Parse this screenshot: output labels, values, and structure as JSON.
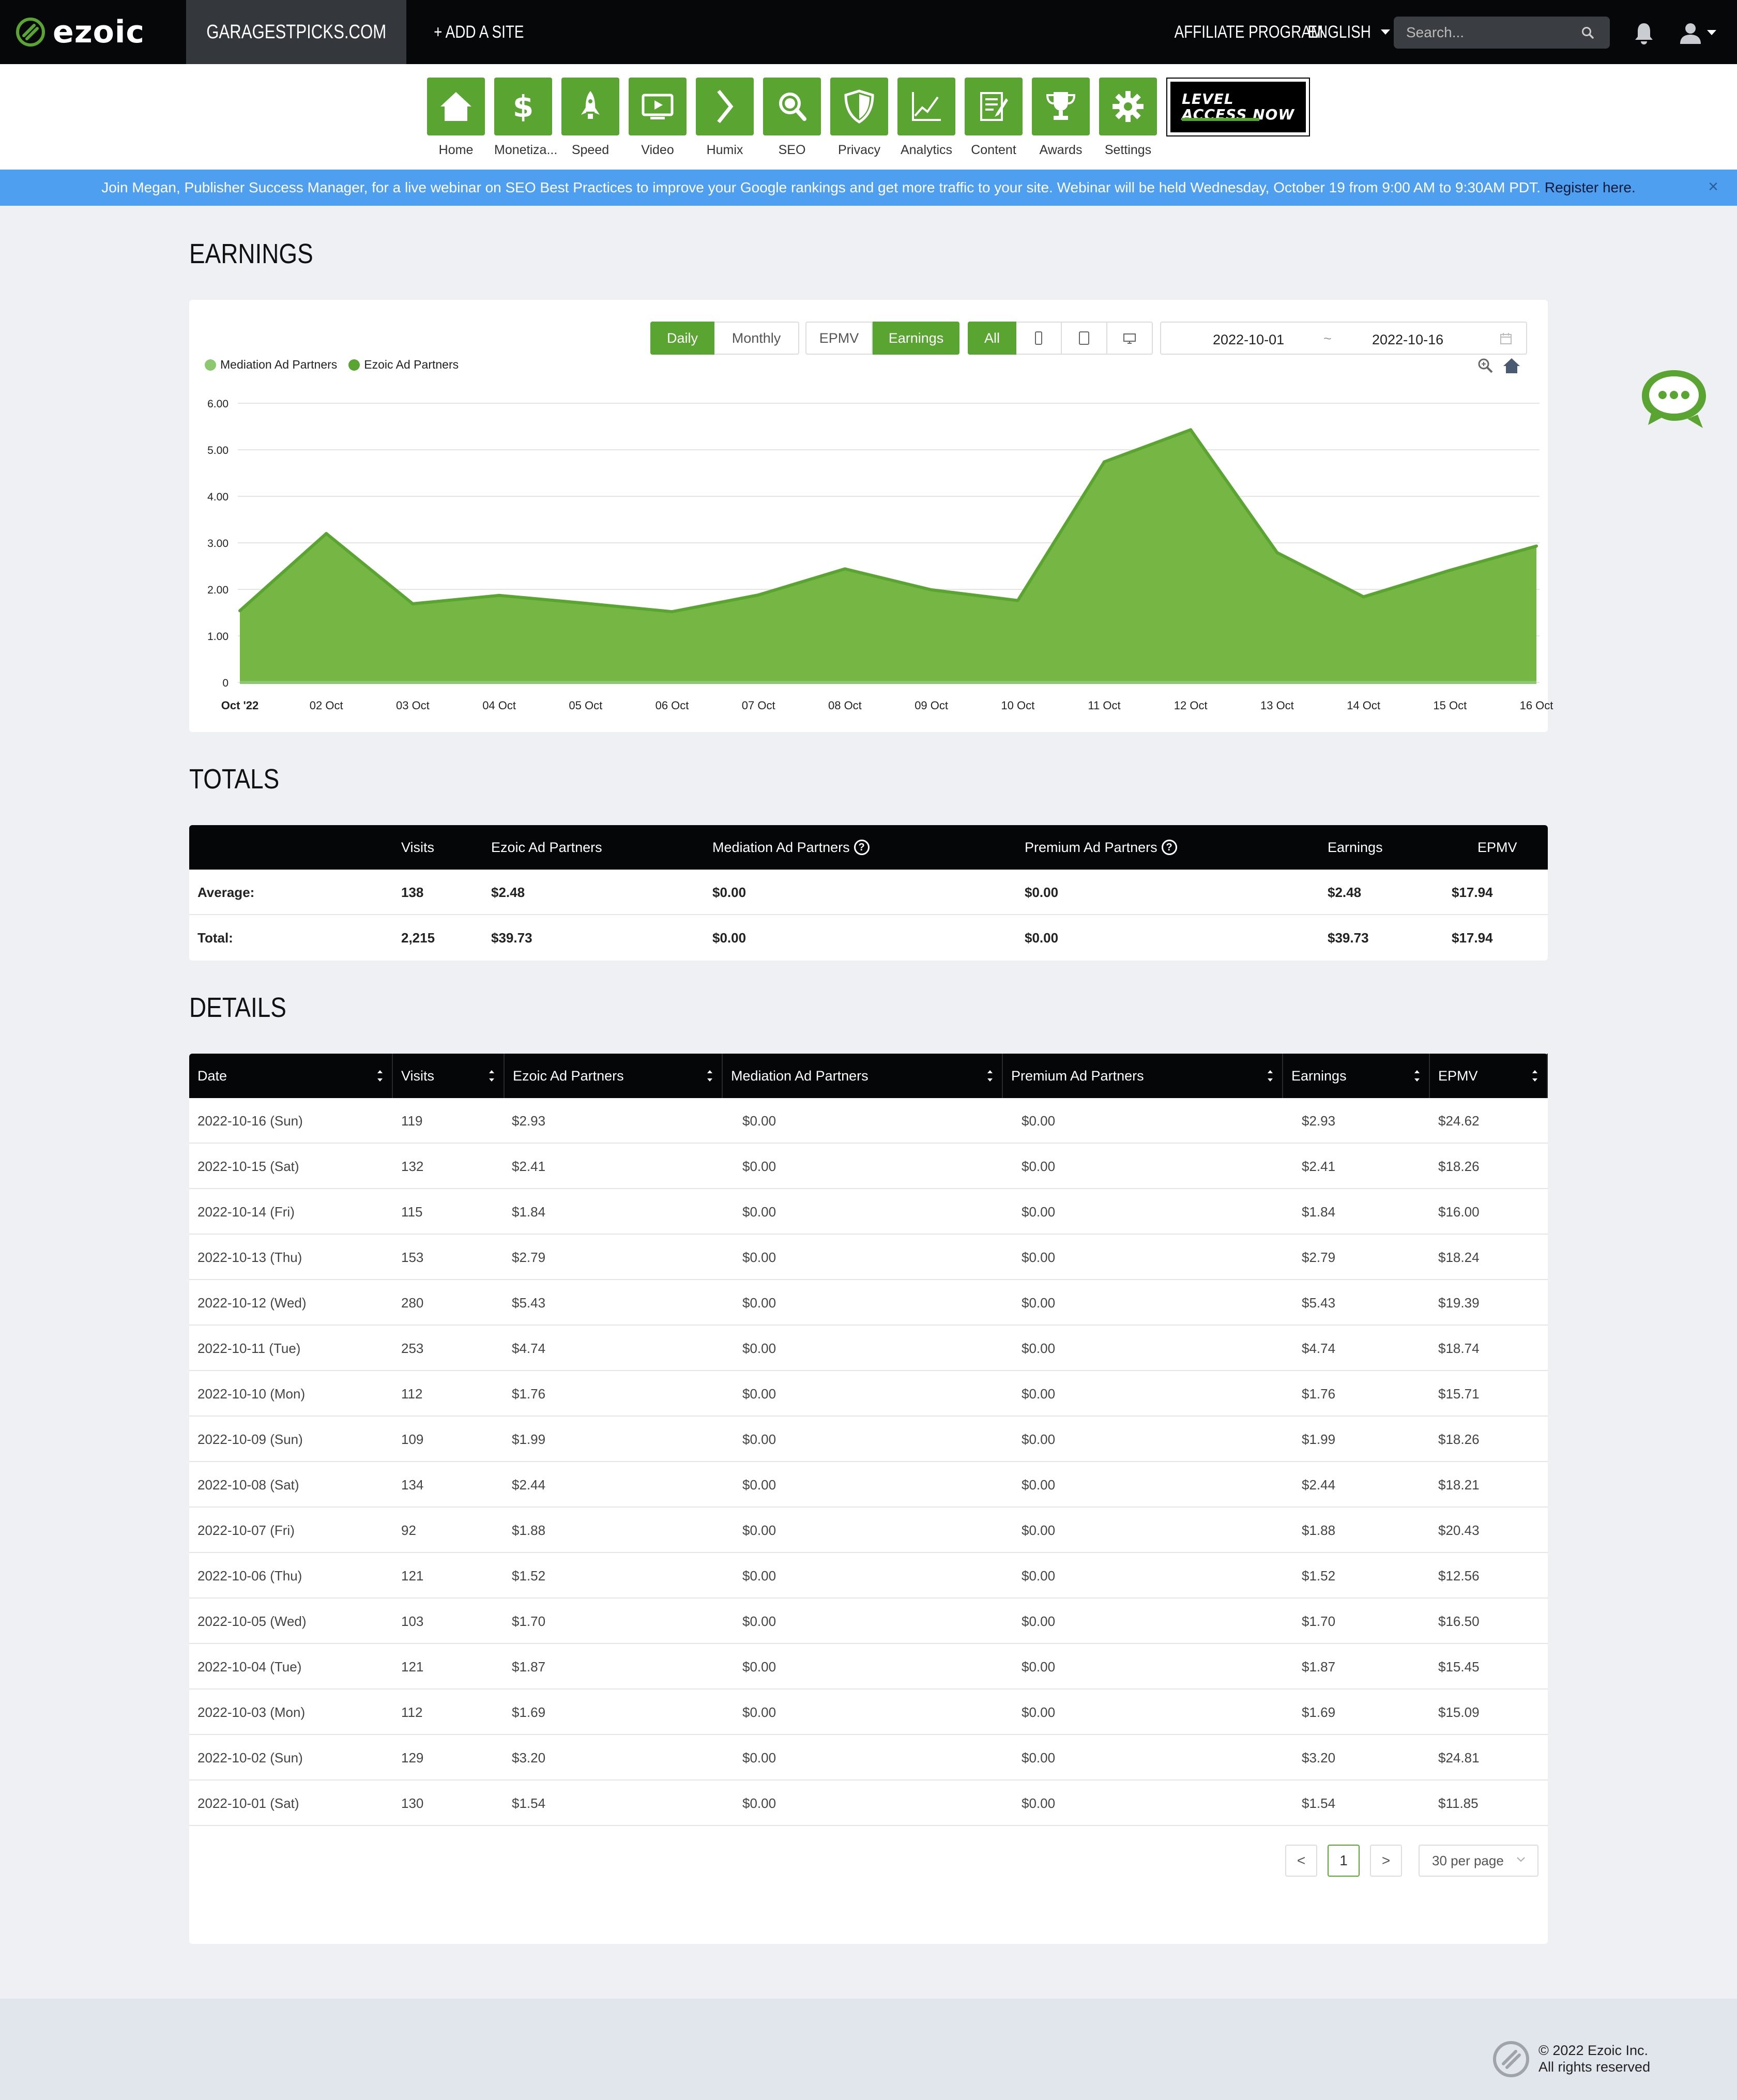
{
  "topbar": {
    "logo_text": "ezoic",
    "site_name": "GARAGESTPICKS.COM",
    "add_site": "+ ADD A SITE",
    "affiliate": "AFFILIATE PROGRAM",
    "language": "ENGLISH",
    "search_placeholder": "Search..."
  },
  "nav": {
    "items": [
      {
        "label": "Home",
        "icon": "home-icon"
      },
      {
        "label": "Monetiza...",
        "icon": "dollar-icon"
      },
      {
        "label": "Speed",
        "icon": "rocket-icon"
      },
      {
        "label": "Video",
        "icon": "video-icon"
      },
      {
        "label": "Humix",
        "icon": "chevron-right-icon"
      },
      {
        "label": "SEO",
        "icon": "magnifier-icon"
      },
      {
        "label": "Privacy",
        "icon": "shield-icon"
      },
      {
        "label": "Analytics",
        "icon": "line-chart-icon"
      },
      {
        "label": "Content",
        "icon": "edit-document-icon"
      },
      {
        "label": "Awards",
        "icon": "trophy-icon"
      },
      {
        "label": "Settings",
        "icon": "gear-icon"
      }
    ],
    "level_access": {
      "line1": "LEVEL",
      "line2": "ACCESS NOW"
    }
  },
  "banner": {
    "text": "Join Megan, Publisher Success Manager, for a live webinar on SEO Best Practices to improve your Google rankings and get more traffic to your site. Webinar will be held Wednesday, October 19 from 9:00 AM to 9:30AM PDT.",
    "link": "Register here.",
    "close": "×"
  },
  "earnings": {
    "title": "EARNINGS",
    "toggles": {
      "daily": "Daily",
      "monthly": "Monthly",
      "epmv": "EPMV",
      "earnings": "Earnings",
      "all": "All"
    },
    "date_from": "2022-10-01",
    "date_sep": "~",
    "date_to": "2022-10-16"
  },
  "chart_data": {
    "type": "area",
    "legend": [
      "Mediation Ad Partners",
      "Ezoic Ad Partners"
    ],
    "legend_colors": [
      "#8bc870",
      "#5aa532"
    ],
    "categories": [
      "Oct '22",
      "02 Oct",
      "03 Oct",
      "04 Oct",
      "05 Oct",
      "06 Oct",
      "07 Oct",
      "08 Oct",
      "09 Oct",
      "10 Oct",
      "11 Oct",
      "12 Oct",
      "13 Oct",
      "14 Oct",
      "15 Oct",
      "16 Oct"
    ],
    "y_ticks": [
      "0",
      "1.00",
      "2.00",
      "3.00",
      "4.00",
      "5.00",
      "6.00"
    ],
    "ylim": [
      0,
      6
    ],
    "series": [
      {
        "name": "Mediation Ad Partners",
        "values": [
          0,
          0,
          0,
          0,
          0,
          0,
          0,
          0,
          0,
          0,
          0,
          0,
          0,
          0,
          0,
          0
        ]
      },
      {
        "name": "Ezoic Ad Partners",
        "values": [
          1.54,
          3.2,
          1.69,
          1.87,
          1.7,
          1.52,
          1.88,
          2.44,
          1.99,
          1.76,
          4.74,
          5.43,
          2.79,
          1.84,
          2.41,
          2.93
        ]
      }
    ],
    "grid": true,
    "legend_position": "top-left"
  },
  "totals": {
    "title": "TOTALS",
    "headers": [
      "",
      "Visits",
      "Ezoic Ad Partners",
      "Mediation Ad Partners",
      "Premium Ad Partners",
      "Earnings",
      "EPMV"
    ],
    "rows": [
      [
        "Average:",
        "138",
        "$2.48",
        "$0.00",
        "$0.00",
        "$2.48",
        "$17.94"
      ],
      [
        "Total:",
        "2,215",
        "$39.73",
        "$0.00",
        "$0.00",
        "$39.73",
        "$17.94"
      ]
    ]
  },
  "details": {
    "title": "DETAILS",
    "headers": [
      "Date",
      "Visits",
      "Ezoic Ad Partners",
      "Mediation Ad Partners",
      "Premium Ad Partners",
      "Earnings",
      "EPMV"
    ],
    "rows": [
      [
        "2022-10-16 (Sun)",
        "119",
        "$2.93",
        "$0.00",
        "$0.00",
        "$2.93",
        "$24.62"
      ],
      [
        "2022-10-15 (Sat)",
        "132",
        "$2.41",
        "$0.00",
        "$0.00",
        "$2.41",
        "$18.26"
      ],
      [
        "2022-10-14 (Fri)",
        "115",
        "$1.84",
        "$0.00",
        "$0.00",
        "$1.84",
        "$16.00"
      ],
      [
        "2022-10-13 (Thu)",
        "153",
        "$2.79",
        "$0.00",
        "$0.00",
        "$2.79",
        "$18.24"
      ],
      [
        "2022-10-12 (Wed)",
        "280",
        "$5.43",
        "$0.00",
        "$0.00",
        "$5.43",
        "$19.39"
      ],
      [
        "2022-10-11 (Tue)",
        "253",
        "$4.74",
        "$0.00",
        "$0.00",
        "$4.74",
        "$18.74"
      ],
      [
        "2022-10-10 (Mon)",
        "112",
        "$1.76",
        "$0.00",
        "$0.00",
        "$1.76",
        "$15.71"
      ],
      [
        "2022-10-09 (Sun)",
        "109",
        "$1.99",
        "$0.00",
        "$0.00",
        "$1.99",
        "$18.26"
      ],
      [
        "2022-10-08 (Sat)",
        "134",
        "$2.44",
        "$0.00",
        "$0.00",
        "$2.44",
        "$18.21"
      ],
      [
        "2022-10-07 (Fri)",
        "92",
        "$1.88",
        "$0.00",
        "$0.00",
        "$1.88",
        "$20.43"
      ],
      [
        "2022-10-06 (Thu)",
        "121",
        "$1.52",
        "$0.00",
        "$0.00",
        "$1.52",
        "$12.56"
      ],
      [
        "2022-10-05 (Wed)",
        "103",
        "$1.70",
        "$0.00",
        "$0.00",
        "$1.70",
        "$16.50"
      ],
      [
        "2022-10-04 (Tue)",
        "121",
        "$1.87",
        "$0.00",
        "$0.00",
        "$1.87",
        "$15.45"
      ],
      [
        "2022-10-03 (Mon)",
        "112",
        "$1.69",
        "$0.00",
        "$0.00",
        "$1.69",
        "$15.09"
      ],
      [
        "2022-10-02 (Sun)",
        "129",
        "$3.20",
        "$0.00",
        "$0.00",
        "$3.20",
        "$24.81"
      ],
      [
        "2022-10-01 (Sat)",
        "130",
        "$1.54",
        "$0.00",
        "$0.00",
        "$1.54",
        "$11.85"
      ]
    ],
    "pagination": {
      "prev": "<",
      "page": "1",
      "next": ">",
      "per_page": "30 per page"
    }
  },
  "footer": {
    "line1": "© 2022 Ezoic Inc.",
    "line2": "All rights reserved"
  },
  "colors": {
    "accent": "#5aa532",
    "banner": "#4f9ff1",
    "topbar": "#060708"
  }
}
